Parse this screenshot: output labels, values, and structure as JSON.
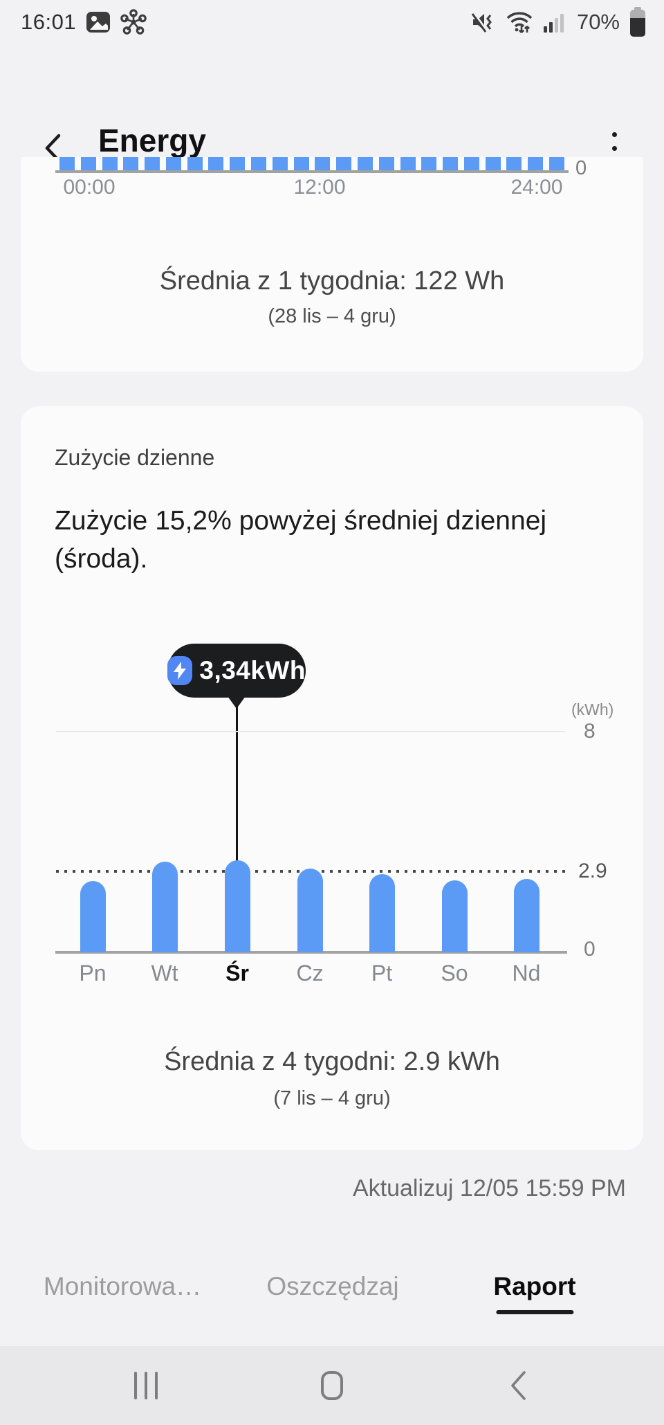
{
  "status_bar": {
    "time": "16:01",
    "battery_percent": "70%",
    "left_icons": [
      "gallery-icon",
      "share-hub-icon"
    ],
    "right_icons": [
      "mute-vibrate-icon",
      "wifi-icon",
      "signal-icon",
      "battery-icon"
    ]
  },
  "header": {
    "title": "Energy"
  },
  "hourly_card": {
    "axis_zero": "0",
    "summary": "Średnia z 1 tygodnia: 122 Wh",
    "range": "(28 lis – 4 gru)"
  },
  "daily_card": {
    "title": "Zużycie dzienne",
    "message": "Zużycie 15,2% powyżej średniej dziennej (środa).",
    "tooltip_value": "3,34kWh",
    "unit_label": "(kWh)",
    "y_max_label": "8",
    "avg_label": "2.9",
    "y_zero_label": "0",
    "summary": "Średnia z 4 tygodni: 2.9 kWh",
    "range": "(7 lis – 4 gru)"
  },
  "footer": {
    "update_label": "Aktualizuj 12/05 15:59 PM"
  },
  "tabs": [
    {
      "label": "Monitorowa…",
      "active": false
    },
    {
      "label": "Oszczędzaj",
      "active": false
    },
    {
      "label": "Raport",
      "active": true
    }
  ],
  "colors": {
    "bar_blue": "#5b9bf6",
    "tooltip_bg": "#1c1d1f",
    "tooltip_icon_blue": "#5087f5",
    "active_tab_underline": "#1c1c1c",
    "page_bg": "#f2f2f4",
    "card_bg": "#fbfbfc"
  },
  "chart_data": [
    {
      "type": "bar",
      "title": "",
      "x_ticks": [
        "00:00",
        "12:00",
        "24:00"
      ],
      "bar_count": 24,
      "note": "24 uniform hourly bars; chart top clipped by scroll, only bar bottoms visible",
      "y_ticks_right": [
        "0"
      ],
      "summary": "Średnia z 1 tygodnia: 122 Wh",
      "period": "(28 lis – 4 gru)"
    },
    {
      "type": "bar",
      "categories": [
        "Pn",
        "Wt",
        "Śr",
        "Cz",
        "Pt",
        "So",
        "Nd"
      ],
      "values": [
        2.59,
        3.3,
        3.34,
        3.05,
        2.84,
        2.62,
        2.67
      ],
      "selected": {
        "category": "Śr",
        "value": 3.34,
        "label": "3,34kWh"
      },
      "average_line": 2.9,
      "unit": "kWh",
      "ylim": [
        0,
        8
      ],
      "y_ticks_right": [
        "8",
        "2.9",
        "0"
      ],
      "grid": "single line at 8, dotted line at 2.9",
      "legend_position": "none",
      "summary": "Średnia z 4 tygodni: 2.9 kWh",
      "period": "(7 lis – 4 gru)"
    }
  ]
}
